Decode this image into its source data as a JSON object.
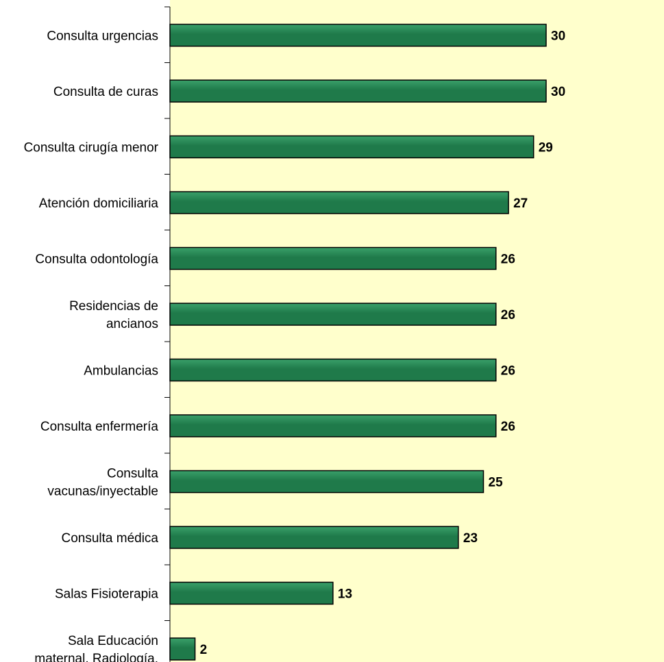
{
  "chart_data": {
    "type": "bar",
    "orientation": "horizontal",
    "title": "",
    "xlabel": "",
    "ylabel": "",
    "categories": [
      [
        "Consulta  urgencias"
      ],
      [
        "Consulta de curas"
      ],
      [
        "Consulta cirugía menor"
      ],
      [
        "Atención domiciliaria"
      ],
      [
        "Consulta odontología"
      ],
      [
        "Residencias de",
        "ancianos"
      ],
      [
        "Ambulancias"
      ],
      [
        "Consulta  enfermería"
      ],
      [
        "Consulta",
        "vacunas/inyectable"
      ],
      [
        "Consulta médica"
      ],
      [
        "Salas Fisioterapia"
      ],
      [
        "Sala Educación",
        "maternal, Radiología."
      ]
    ],
    "values": [
      30,
      30,
      29,
      27,
      26,
      26,
      26,
      26,
      25,
      23,
      13,
      2
    ],
    "xlim": [
      0,
      39
    ],
    "grid": false,
    "legend": "none",
    "colors": {
      "plot_background": "#ffffcc",
      "bar_fill": "#1f7a4a",
      "bar_highlight": "#3aa06a",
      "bar_stroke": "#000000",
      "axis": "#000000"
    }
  }
}
